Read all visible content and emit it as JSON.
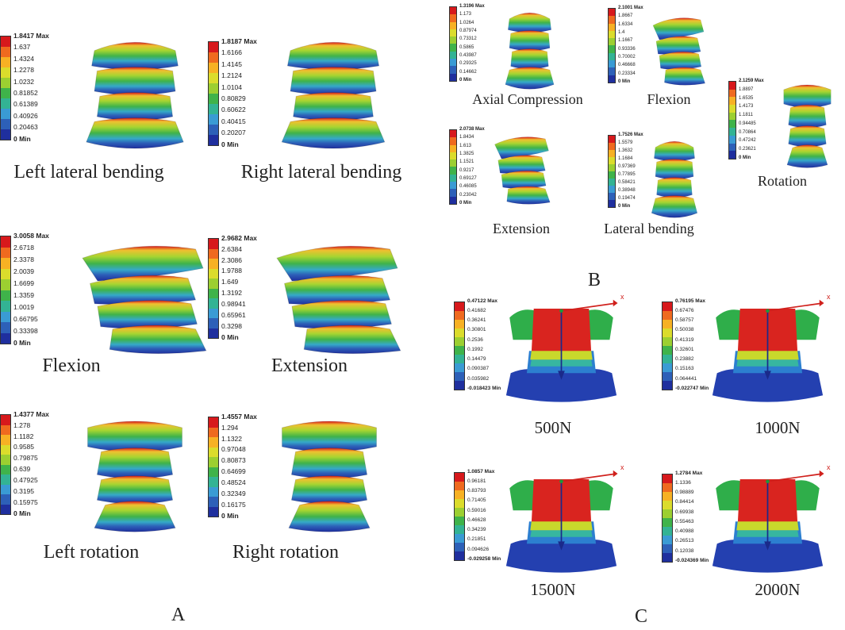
{
  "palette": [
    "#d7191c",
    "#ef6a1f",
    "#f7b124",
    "#dbdc2c",
    "#9ccf31",
    "#3fb34a",
    "#33b394",
    "#3a9bd4",
    "#2d60b8",
    "#1f2f9e"
  ],
  "panel_letters": {
    "A": "A",
    "B": "B",
    "C": "C"
  },
  "panelA": [
    {
      "caption": "Left lateral bending",
      "values": [
        "1.8417 Max",
        "1.637",
        "1.4324",
        "1.2278",
        "1.0232",
        "0.81852",
        "0.61389",
        "0.40926",
        "0.20463",
        "0 Min"
      ]
    },
    {
      "caption": "Right lateral bending",
      "values": [
        "1.8187 Max",
        "1.6166",
        "1.4145",
        "1.2124",
        "1.0104",
        "0.80829",
        "0.60622",
        "0.40415",
        "0.20207",
        "0 Min"
      ]
    },
    {
      "caption": "Flexion",
      "values": [
        "3.0058 Max",
        "2.6718",
        "2.3378",
        "2.0039",
        "1.6699",
        "1.3359",
        "1.0019",
        "0.66795",
        "0.33398",
        "0 Min"
      ]
    },
    {
      "caption": "Extension",
      "values": [
        "2.9682 Max",
        "2.6384",
        "2.3086",
        "1.9788",
        "1.649",
        "1.3192",
        "0.98941",
        "0.65961",
        "0.3298",
        "0 Min"
      ]
    },
    {
      "caption": "Left rotation",
      "values": [
        "1.4377 Max",
        "1.278",
        "1.1182",
        "0.9585",
        "0.79875",
        "0.639",
        "0.47925",
        "0.3195",
        "0.15975",
        "0 Min"
      ]
    },
    {
      "caption": "Right rotation",
      "values": [
        "1.4557 Max",
        "1.294",
        "1.1322",
        "0.97048",
        "0.80873",
        "0.64699",
        "0.48524",
        "0.32349",
        "0.16175",
        "0 Min"
      ]
    }
  ],
  "panelB": [
    {
      "caption": "Axial Compression",
      "values": [
        "1.3196 Max",
        "1.173",
        "1.0264",
        "0.87974",
        "0.73312",
        "0.5865",
        "0.43987",
        "0.29325",
        "0.14662",
        "0 Min"
      ]
    },
    {
      "caption": "Flexion",
      "values": [
        "2.1001 Max",
        "1.8667",
        "1.6334",
        "1.4",
        "1.1667",
        "0.93336",
        "0.70002",
        "0.46668",
        "0.23334",
        "0 Min"
      ]
    },
    {
      "caption": "Rotation",
      "values": [
        "2.1259 Max",
        "1.8897",
        "1.6535",
        "1.4173",
        "1.1811",
        "0.94485",
        "0.70864",
        "0.47242",
        "0.23621",
        "0 Min"
      ]
    },
    {
      "caption": "Extension",
      "values": [
        "2.0738 Max",
        "1.8434",
        "1.613",
        "1.3825",
        "1.1521",
        "0.9217",
        "0.69127",
        "0.46085",
        "0.23042",
        "0 Min"
      ]
    },
    {
      "caption": "Lateral bending",
      "values": [
        "1.7526 Max",
        "1.5579",
        "1.3632",
        "1.1684",
        "0.97369",
        "0.77895",
        "0.58421",
        "0.38948",
        "0.19474",
        "0 Min"
      ]
    }
  ],
  "panelC": [
    {
      "caption": "500N",
      "values": [
        "0.47122 Max",
        "0.41682",
        "0.36241",
        "0.30801",
        "0.2536",
        "0.1992",
        "0.14479",
        "0.090387",
        "0.035982",
        "-0.018423 Min"
      ]
    },
    {
      "caption": "1000N",
      "values": [
        "0.76195 Max",
        "0.67476",
        "0.58757",
        "0.50038",
        "0.41319",
        "0.32601",
        "0.23882",
        "0.15163",
        "0.064441",
        "-0.022747 Min"
      ]
    },
    {
      "caption": "1500N",
      "values": [
        "1.0857 Max",
        "0.96181",
        "0.83793",
        "0.71405",
        "0.59016",
        "0.46628",
        "0.34239",
        "0.21851",
        "0.094626",
        "-0.029258 Min"
      ]
    },
    {
      "caption": "2000N",
      "values": [
        "1.2784 Max",
        "1.1336",
        "0.98889",
        "0.84414",
        "0.69938",
        "0.55463",
        "0.40988",
        "0.26513",
        "0.12038",
        "-0.024369 Min"
      ]
    }
  ],
  "axis_marker": "x"
}
